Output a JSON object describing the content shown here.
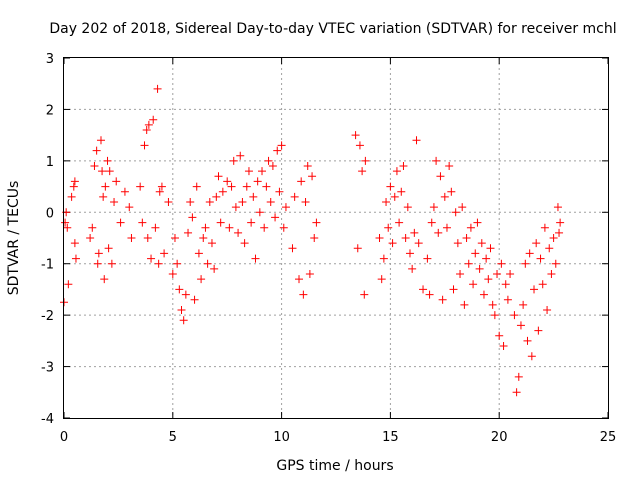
{
  "chart_data": {
    "type": "scatter",
    "title": "Day 202 of 2018, Sidereal Day-to-day VTEC variation (SDTVAR) for receiver mchl",
    "xlabel": "GPS time / hours",
    "ylabel": "SDTVAR / TECUs",
    "xlim": [
      0,
      25
    ],
    "ylim": [
      -4,
      3
    ],
    "xticks": [
      "0",
      "5",
      "10",
      "15",
      "20",
      "25"
    ],
    "yticks": [
      "-4",
      "-3",
      "-2",
      "-1",
      "0",
      "1",
      "2",
      "3"
    ],
    "grid": true,
    "marker": "+",
    "color": "#ff0000",
    "series": [
      {
        "name": "SDTVAR",
        "points": [
          [
            0.0,
            -1.75
          ],
          [
            0.05,
            -0.2
          ],
          [
            0.1,
            0.0
          ],
          [
            0.15,
            -0.3
          ],
          [
            0.2,
            -1.4
          ],
          [
            0.35,
            0.3
          ],
          [
            0.45,
            0.5
          ],
          [
            0.5,
            0.6
          ],
          [
            0.5,
            -0.6
          ],
          [
            0.55,
            -0.9
          ],
          [
            1.2,
            -0.5
          ],
          [
            1.3,
            -0.3
          ],
          [
            1.4,
            0.9
          ],
          [
            1.5,
            1.2
          ],
          [
            1.55,
            -1.0
          ],
          [
            1.6,
            -0.8
          ],
          [
            1.7,
            1.4
          ],
          [
            1.75,
            0.8
          ],
          [
            1.8,
            0.3
          ],
          [
            1.85,
            -1.3
          ],
          [
            1.9,
            0.5
          ],
          [
            2.0,
            1.0
          ],
          [
            2.05,
            -0.7
          ],
          [
            2.1,
            0.8
          ],
          [
            2.2,
            -1.0
          ],
          [
            2.3,
            0.2
          ],
          [
            2.4,
            0.6
          ],
          [
            2.6,
            -0.2
          ],
          [
            2.8,
            0.4
          ],
          [
            3.0,
            0.1
          ],
          [
            3.1,
            -0.5
          ],
          [
            3.5,
            0.5
          ],
          [
            3.6,
            -0.2
          ],
          [
            3.7,
            1.3
          ],
          [
            3.8,
            1.6
          ],
          [
            3.85,
            -0.5
          ],
          [
            3.9,
            1.7
          ],
          [
            4.0,
            -0.9
          ],
          [
            4.1,
            1.8
          ],
          [
            4.2,
            -0.3
          ],
          [
            4.3,
            2.4
          ],
          [
            4.35,
            -1.0
          ],
          [
            4.4,
            0.4
          ],
          [
            4.5,
            0.5
          ],
          [
            4.6,
            -0.8
          ],
          [
            4.8,
            0.2
          ],
          [
            5.0,
            -1.2
          ],
          [
            5.1,
            -0.5
          ],
          [
            5.2,
            -1.0
          ],
          [
            5.3,
            -1.5
          ],
          [
            5.4,
            -1.9
          ],
          [
            5.5,
            -2.1
          ],
          [
            5.6,
            -1.6
          ],
          [
            5.7,
            -0.4
          ],
          [
            5.8,
            0.2
          ],
          [
            5.9,
            -0.1
          ],
          [
            6.0,
            -1.7
          ],
          [
            6.1,
            0.5
          ],
          [
            6.2,
            -0.8
          ],
          [
            6.3,
            -1.3
          ],
          [
            6.4,
            -0.5
          ],
          [
            6.5,
            -0.3
          ],
          [
            6.6,
            -1.0
          ],
          [
            6.7,
            0.2
          ],
          [
            6.8,
            -0.6
          ],
          [
            6.9,
            -1.1
          ],
          [
            7.0,
            0.3
          ],
          [
            7.1,
            0.7
          ],
          [
            7.2,
            -0.2
          ],
          [
            7.3,
            0.4
          ],
          [
            7.5,
            0.6
          ],
          [
            7.6,
            -0.3
          ],
          [
            7.7,
            0.5
          ],
          [
            7.8,
            1.0
          ],
          [
            7.9,
            0.1
          ],
          [
            8.0,
            -0.4
          ],
          [
            8.1,
            1.1
          ],
          [
            8.2,
            0.2
          ],
          [
            8.3,
            -0.6
          ],
          [
            8.4,
            0.5
          ],
          [
            8.5,
            0.8
          ],
          [
            8.6,
            -0.2
          ],
          [
            8.7,
            0.3
          ],
          [
            8.8,
            -0.9
          ],
          [
            8.9,
            0.6
          ],
          [
            9.0,
            0.0
          ],
          [
            9.1,
            0.8
          ],
          [
            9.2,
            -0.3
          ],
          [
            9.3,
            0.5
          ],
          [
            9.4,
            1.0
          ],
          [
            9.5,
            0.2
          ],
          [
            9.6,
            0.9
          ],
          [
            9.7,
            -0.1
          ],
          [
            9.8,
            1.2
          ],
          [
            9.9,
            0.4
          ],
          [
            10.0,
            1.3
          ],
          [
            10.1,
            -0.3
          ],
          [
            10.2,
            0.1
          ],
          [
            10.5,
            -0.7
          ],
          [
            10.6,
            0.3
          ],
          [
            10.8,
            -1.3
          ],
          [
            10.9,
            0.6
          ],
          [
            11.0,
            -1.6
          ],
          [
            11.1,
            0.2
          ],
          [
            11.2,
            0.9
          ],
          [
            11.3,
            -1.2
          ],
          [
            11.4,
            0.7
          ],
          [
            11.5,
            -0.5
          ],
          [
            11.6,
            -0.2
          ],
          [
            13.4,
            1.5
          ],
          [
            13.5,
            -0.7
          ],
          [
            13.6,
            1.3
          ],
          [
            13.7,
            0.8
          ],
          [
            13.8,
            -1.6
          ],
          [
            13.85,
            1.0
          ],
          [
            14.5,
            -0.5
          ],
          [
            14.6,
            -1.3
          ],
          [
            14.7,
            -0.9
          ],
          [
            14.8,
            0.2
          ],
          [
            14.9,
            -0.3
          ],
          [
            15.0,
            0.5
          ],
          [
            15.1,
            -0.6
          ],
          [
            15.2,
            0.3
          ],
          [
            15.3,
            0.8
          ],
          [
            15.4,
            -0.2
          ],
          [
            15.5,
            0.4
          ],
          [
            15.6,
            0.9
          ],
          [
            15.7,
            -0.5
          ],
          [
            15.8,
            0.1
          ],
          [
            15.9,
            -0.8
          ],
          [
            16.0,
            -1.1
          ],
          [
            16.1,
            -0.4
          ],
          [
            16.2,
            1.4
          ],
          [
            16.3,
            -0.6
          ],
          [
            16.5,
            -1.5
          ],
          [
            16.7,
            -0.9
          ],
          [
            16.8,
            -1.6
          ],
          [
            16.9,
            -0.2
          ],
          [
            17.0,
            0.1
          ],
          [
            17.1,
            1.0
          ],
          [
            17.2,
            -0.4
          ],
          [
            17.3,
            0.7
          ],
          [
            17.4,
            -1.7
          ],
          [
            17.5,
            0.3
          ],
          [
            17.6,
            -0.3
          ],
          [
            17.7,
            0.9
          ],
          [
            17.8,
            0.4
          ],
          [
            17.9,
            -1.5
          ],
          [
            18.0,
            0.0
          ],
          [
            18.1,
            -0.6
          ],
          [
            18.2,
            -1.2
          ],
          [
            18.3,
            0.1
          ],
          [
            18.4,
            -1.8
          ],
          [
            18.5,
            -0.5
          ],
          [
            18.6,
            -1.0
          ],
          [
            18.7,
            -0.3
          ],
          [
            18.8,
            -1.4
          ],
          [
            18.9,
            -0.8
          ],
          [
            19.0,
            -0.2
          ],
          [
            19.1,
            -1.1
          ],
          [
            19.2,
            -0.6
          ],
          [
            19.3,
            -1.6
          ],
          [
            19.4,
            -0.9
          ],
          [
            19.5,
            -1.3
          ],
          [
            19.6,
            -0.7
          ],
          [
            19.7,
            -1.8
          ],
          [
            19.8,
            -2.0
          ],
          [
            19.9,
            -1.2
          ],
          [
            20.0,
            -2.4
          ],
          [
            20.1,
            -1.0
          ],
          [
            20.2,
            -2.6
          ],
          [
            20.3,
            -1.4
          ],
          [
            20.4,
            -1.7
          ],
          [
            20.5,
            -1.2
          ],
          [
            20.7,
            -2.0
          ],
          [
            20.8,
            -3.5
          ],
          [
            20.9,
            -3.2
          ],
          [
            21.0,
            -2.2
          ],
          [
            21.1,
            -1.8
          ],
          [
            21.2,
            -1.0
          ],
          [
            21.3,
            -2.5
          ],
          [
            21.4,
            -0.8
          ],
          [
            21.5,
            -2.8
          ],
          [
            21.6,
            -1.5
          ],
          [
            21.7,
            -0.6
          ],
          [
            21.8,
            -2.3
          ],
          [
            21.9,
            -0.9
          ],
          [
            22.0,
            -1.4
          ],
          [
            22.1,
            -0.3
          ],
          [
            22.2,
            -1.9
          ],
          [
            22.3,
            -0.7
          ],
          [
            22.4,
            -1.2
          ],
          [
            22.5,
            -0.5
          ],
          [
            22.6,
            -1.0
          ],
          [
            22.7,
            0.1
          ],
          [
            22.75,
            -0.4
          ],
          [
            22.8,
            -0.2
          ]
        ]
      }
    ]
  }
}
